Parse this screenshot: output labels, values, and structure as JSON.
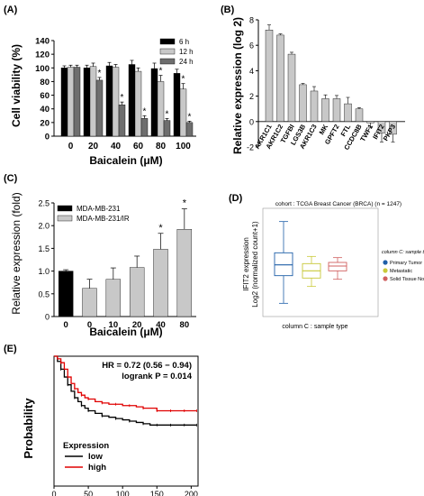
{
  "panels": {
    "A": "(A)",
    "B": "(B)",
    "C": "(C)",
    "D": "(D)",
    "E": "(E)"
  },
  "chart_data": [
    {
      "id": "A",
      "type": "bar",
      "xlabel": "Baicalein (μM)",
      "ylabel": "Cell viability (%)",
      "ylim": [
        0,
        140
      ],
      "yticks": [
        0,
        20,
        40,
        60,
        80,
        100,
        120,
        140
      ],
      "categories": [
        "0",
        "20",
        "40",
        "60",
        "80",
        "100"
      ],
      "legend_position": "top-right",
      "series": [
        {
          "name": "6 h",
          "color": "#000000",
          "values": [
            100,
            100,
            103,
            105,
            99,
            92
          ],
          "errors": [
            3,
            4,
            5,
            6,
            8,
            6
          ]
        },
        {
          "name": "12 h",
          "color": "#c8c8c8",
          "values": [
            101,
            102,
            101,
            95,
            80,
            69
          ],
          "errors": [
            3,
            5,
            4,
            5,
            9,
            8
          ]
        },
        {
          "name": "24 h",
          "color": "#6e6e6e",
          "values": [
            101,
            82,
            46,
            26,
            23,
            20
          ],
          "errors": [
            3,
            4,
            4,
            4,
            3,
            2
          ]
        }
      ],
      "significance": {
        "24 h": [
          "",
          "*",
          "*",
          "*",
          "*",
          "*"
        ],
        "12 h": [
          "",
          "",
          "",
          "",
          "*",
          "*"
        ]
      }
    },
    {
      "id": "B",
      "type": "bar",
      "ylabel": "Relative expression (log 2)",
      "ylim": [
        -2,
        8
      ],
      "yticks": [
        -2,
        0,
        2,
        4,
        6,
        8
      ],
      "categories": [
        "AKR1C1",
        "AKR1C2",
        "TGFBI",
        "LGS3B",
        "AKR1C3",
        "MK",
        "GPFT2",
        "FTL",
        "CCDC8B",
        "TWF1",
        "IFIT2",
        "PKP3"
      ],
      "values": [
        7.2,
        6.8,
        5.3,
        2.9,
        2.4,
        1.8,
        1.8,
        1.4,
        1.0,
        -0.1,
        -0.9,
        -1.0
      ],
      "errors": [
        0.4,
        0.1,
        0.15,
        0.1,
        0.35,
        0.3,
        0.25,
        0.5,
        0.1,
        0.4,
        0.7,
        0.6
      ],
      "color": "#c8c8c8"
    },
    {
      "id": "C",
      "type": "bar",
      "xlabel": "Baicalein (μM)",
      "ylabel": "Relative expression (fold)",
      "ylim": [
        0,
        2.5
      ],
      "yticks": [
        0,
        0.5,
        1.0,
        1.5,
        2.0,
        2.5
      ],
      "ytick_labels": [
        "0",
        "0.5",
        "1.0",
        "1.5",
        "2.0",
        "2.5"
      ],
      "categories": [
        "0",
        "0",
        "10",
        "20",
        "40",
        "80"
      ],
      "values": [
        1.0,
        0.62,
        0.82,
        1.08,
        1.48,
        1.92
      ],
      "errors": [
        0.03,
        0.2,
        0.25,
        0.25,
        0.35,
        0.45
      ],
      "series_of_bar": [
        0,
        1,
        1,
        1,
        1,
        1
      ],
      "significance": [
        "",
        "",
        "",
        "",
        "*",
        "*"
      ],
      "series": [
        {
          "name": "MDA-MB-231",
          "color": "#000000"
        },
        {
          "name": "MDA-MB-231/IR",
          "color": "#c8c8c8"
        }
      ],
      "legend_position": "top-left"
    },
    {
      "id": "D",
      "type": "box",
      "title": "cohort : TCGA Breast Cancer (BRCA)  (n = 1247)",
      "ylabel_line1": "IFIT2 expression",
      "ylabel_line2": "Log2 (normalized count+1)",
      "xlabel": "column C : sample type",
      "legend_title": "column C: sample type",
      "series": [
        {
          "name": "Primary Tumor",
          "color": "#1f5fa8",
          "min": -1.6,
          "q1": -0.45,
          "median": 0.0,
          "q3": 0.5,
          "max": 1.8
        },
        {
          "name": "Metastatic",
          "color": "#c9c93a",
          "min": -0.9,
          "q1": -0.55,
          "median": -0.25,
          "q3": 0.05,
          "max": 0.35
        },
        {
          "name": "Solid Tissue Normal",
          "color": "#d06060",
          "min": -0.6,
          "q1": -0.25,
          "median": -0.05,
          "q3": 0.1,
          "max": 0.3
        }
      ],
      "ylim": [
        -2.0,
        2.2
      ]
    },
    {
      "id": "E",
      "type": "line",
      "ylabel": "Probability",
      "xlim": [
        0,
        210
      ],
      "ylim": [
        0,
        1
      ],
      "xticks": [
        0,
        50,
        100,
        150,
        200
      ],
      "annotations": [
        "HR = 0.72 (0.56 − 0.94)",
        "logrank P = 0.014"
      ],
      "legend_title": "Expression",
      "series": [
        {
          "name": "low",
          "color": "#000000",
          "x": [
            0,
            5,
            10,
            15,
            20,
            25,
            30,
            35,
            40,
            45,
            50,
            60,
            70,
            80,
            90,
            100,
            110,
            120,
            130,
            140,
            150,
            160,
            170,
            180,
            190,
            200,
            208
          ],
          "y": [
            1.0,
            0.96,
            0.9,
            0.84,
            0.78,
            0.73,
            0.68,
            0.65,
            0.62,
            0.6,
            0.58,
            0.56,
            0.54,
            0.53,
            0.52,
            0.51,
            0.5,
            0.49,
            0.48,
            0.47,
            0.47,
            0.47,
            0.47,
            0.47,
            0.47,
            0.47,
            0.47
          ]
        },
        {
          "name": "high",
          "color": "#e00000",
          "x": [
            0,
            5,
            10,
            15,
            20,
            25,
            30,
            35,
            40,
            45,
            50,
            60,
            70,
            80,
            90,
            100,
            110,
            120,
            130,
            140,
            150,
            160,
            170,
            180,
            190,
            200,
            208
          ],
          "y": [
            1.0,
            0.98,
            0.95,
            0.9,
            0.84,
            0.79,
            0.75,
            0.72,
            0.7,
            0.68,
            0.67,
            0.65,
            0.64,
            0.63,
            0.63,
            0.62,
            0.62,
            0.61,
            0.6,
            0.6,
            0.58,
            0.58,
            0.58,
            0.58,
            0.58,
            0.58,
            0.58
          ]
        }
      ]
    }
  ]
}
